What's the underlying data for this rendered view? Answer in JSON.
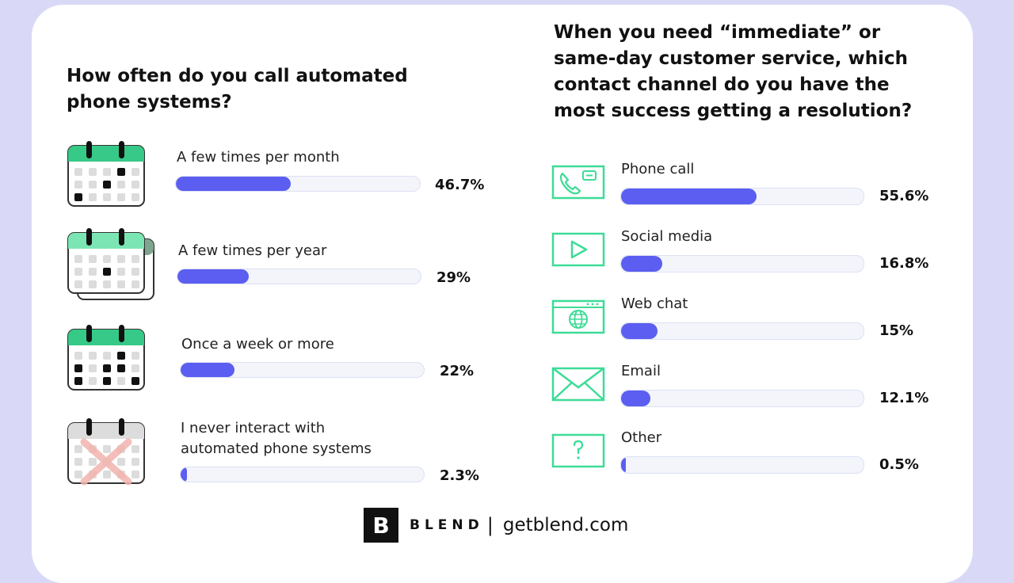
{
  "left": {
    "title": "How often do you call automated phone systems?"
  },
  "right": {
    "title": "When you need “immediate” or same-day customer service, which contact channel do you have the most success getting a resolution?"
  },
  "colors": {
    "bar": "#5b5ef0",
    "track": "#f3f5fb",
    "icon_green": "#3ddc97",
    "calendar_green": "#36c987"
  },
  "chart_data": [
    {
      "type": "bar",
      "orientation": "horizontal",
      "title": "How often do you call automated phone systems?",
      "categories": [
        "A few times per month",
        "A few times per year",
        "Once a week or more",
        "I never interact with automated phone systems"
      ],
      "category_lines": [
        [
          "A few times per month"
        ],
        [
          "A few times per year"
        ],
        [
          "Once a week or more"
        ],
        [
          "I never interact with",
          "automated phone systems"
        ]
      ],
      "values": [
        46.7,
        29,
        22,
        2.3
      ],
      "value_labels": [
        "46.7%",
        "29%",
        "22%",
        "2.3%"
      ],
      "xlim": [
        0,
        100
      ],
      "icons": [
        "calendar-icon",
        "calendar-stack-icon",
        "calendar-weekly-icon",
        "calendar-crossed-icon"
      ]
    },
    {
      "type": "bar",
      "orientation": "horizontal",
      "title": "When you need “immediate” or same-day customer service, which contact channel do you have the most success getting a resolution?",
      "categories": [
        "Phone call",
        "Social media",
        "Web chat",
        "Email",
        "Other"
      ],
      "values": [
        55.6,
        16.8,
        15,
        12.1,
        0.5
      ],
      "value_labels": [
        "55.6%",
        "16.8%",
        "15%",
        "12.1%",
        "0.5%"
      ],
      "xlim": [
        0,
        100
      ],
      "icons": [
        "phone-icon",
        "video-play-icon",
        "web-chat-icon",
        "email-icon",
        "question-icon"
      ]
    }
  ],
  "footer": {
    "logo_letter": "B",
    "brand": "BLEND",
    "separator": "|",
    "site": "getblend.com"
  }
}
